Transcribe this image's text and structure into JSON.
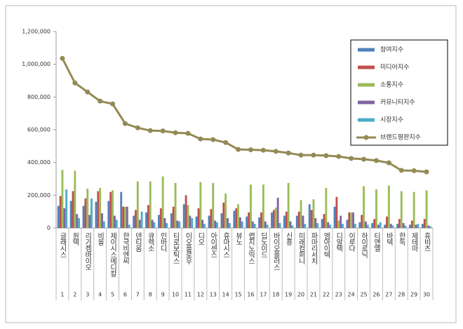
{
  "chart_data": {
    "type": "bar_line",
    "categories": [
      "글래시스",
      "원텍",
      "리가켐바이오",
      "비올",
      "제이시스메디칼",
      "한국비엔씨",
      "덴티움",
      "큐렉소",
      "인바디",
      "티로보틱스",
      "이오플로우",
      "디오",
      "아이센스",
      "휴마시스",
      "뷰노",
      "랩지노믹스",
      "딥노이드",
      "바이오플러스",
      "신흥",
      "미래컴퍼니",
      "파마리서치",
      "엠아이텍",
      "디알텍",
      "이루다",
      "하이로닉",
      "티앤엘",
      "바텍",
      "한독",
      "제테마",
      "휴비츠"
    ],
    "ranks": [
      1,
      2,
      3,
      4,
      5,
      6,
      7,
      8,
      9,
      10,
      11,
      12,
      13,
      14,
      15,
      16,
      17,
      18,
      19,
      20,
      21,
      22,
      23,
      24,
      25,
      26,
      27,
      28,
      29,
      30
    ],
    "series": [
      {
        "name": "참여지수",
        "kind": "bar",
        "color": "#4f81bd",
        "values": [
          135000,
          165000,
          135000,
          160000,
          165000,
          220000,
          75000,
          95000,
          80000,
          90000,
          145000,
          70000,
          75000,
          90000,
          105000,
          70000,
          65000,
          95000,
          75000,
          75000,
          145000,
          55000,
          130000,
          50000,
          35000,
          30000,
          20000,
          25000,
          20000,
          25000
        ]
      },
      {
        "name": "미디어지수",
        "kind": "bar",
        "color": "#c0504d",
        "values": [
          195000,
          225000,
          180000,
          225000,
          220000,
          130000,
          110000,
          140000,
          120000,
          130000,
          200000,
          120000,
          115000,
          155000,
          120000,
          95000,
          95000,
          110000,
          100000,
          100000,
          110000,
          85000,
          190000,
          95000,
          80000,
          55000,
          70000,
          55000,
          45000,
          55000
        ]
      },
      {
        "name": "소통지수",
        "kind": "bar",
        "color": "#9bbb59",
        "values": [
          355000,
          350000,
          240000,
          245000,
          230000,
          130000,
          285000,
          285000,
          315000,
          275000,
          140000,
          280000,
          275000,
          210000,
          145000,
          265000,
          265000,
          125000,
          275000,
          170000,
          175000,
          245000,
          45000,
          95000,
          255000,
          235000,
          260000,
          225000,
          220000,
          230000
        ]
      },
      {
        "name": "커뮤니티지수",
        "kind": "bar",
        "color": "#8064a2",
        "values": [
          120000,
          85000,
          80000,
          90000,
          75000,
          130000,
          50000,
          50000,
          60000,
          45000,
          75000,
          50000,
          45000,
          60000,
          65000,
          40000,
          40000,
          185000,
          40000,
          75000,
          60000,
          35000,
          75000,
          95000,
          40000,
          20000,
          25000,
          30000,
          20000,
          15000
        ]
      },
      {
        "name": "시장지수",
        "kind": "bar",
        "color": "#4bacc6",
        "values": [
          235000,
          60000,
          180000,
          40000,
          50000,
          20000,
          100000,
          35000,
          30000,
          40000,
          60000,
          25000,
          35000,
          30000,
          40000,
          25000,
          20000,
          30000,
          15000,
          25000,
          30000,
          20000,
          25000,
          25000,
          20000,
          35000,
          15000,
          15000,
          25000,
          10000
        ]
      },
      {
        "name": "브랜드평판지수",
        "kind": "line",
        "color": "#948a54",
        "values": [
          1036000,
          886000,
          831000,
          775000,
          758000,
          638000,
          612000,
          595000,
          593000,
          582000,
          578000,
          544000,
          540000,
          522000,
          480000,
          478000,
          475000,
          468000,
          458000,
          445000,
          445000,
          442000,
          437000,
          425000,
          420000,
          412000,
          398000,
          352000,
          350000,
          343000
        ]
      }
    ],
    "ylim": [
      0,
      1200000
    ],
    "yticks": [
      0,
      {
        "value": 200000,
        "label": "200,000"
      },
      {
        "value": 400000,
        "label": "400,000"
      },
      {
        "value": 600000,
        "label": "600,000"
      },
      {
        "value": 800000,
        "label": "800,000"
      },
      {
        "value": 1000000,
        "label": "1,000,000"
      },
      {
        "value": 1200000,
        "label": "1,200,000"
      }
    ],
    "grid": false,
    "legend": "top-right"
  }
}
